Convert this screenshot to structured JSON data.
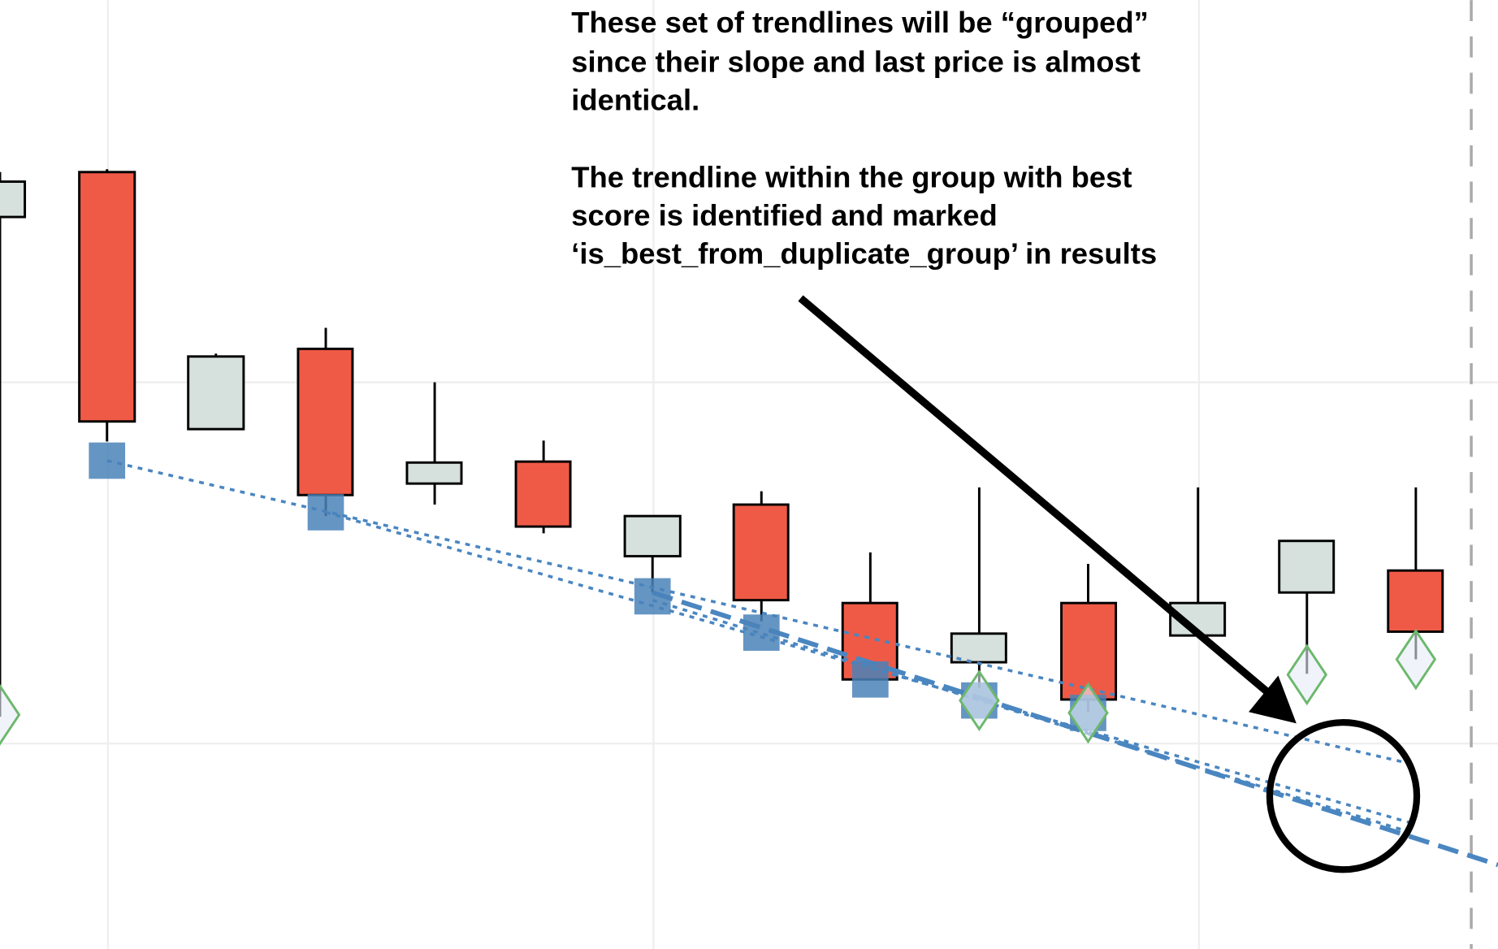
{
  "annotation": {
    "paragraphs": [
      {
        "lines": [
          "These set of trendlines will be “grouped”",
          "since their slope and last price is almost",
          "identical."
        ]
      },
      {
        "lines": [
          "The trendline within the group with best",
          "score is identified and marked",
          "‘is_best_from_duplicate_group’ in results"
        ]
      }
    ]
  }
}
